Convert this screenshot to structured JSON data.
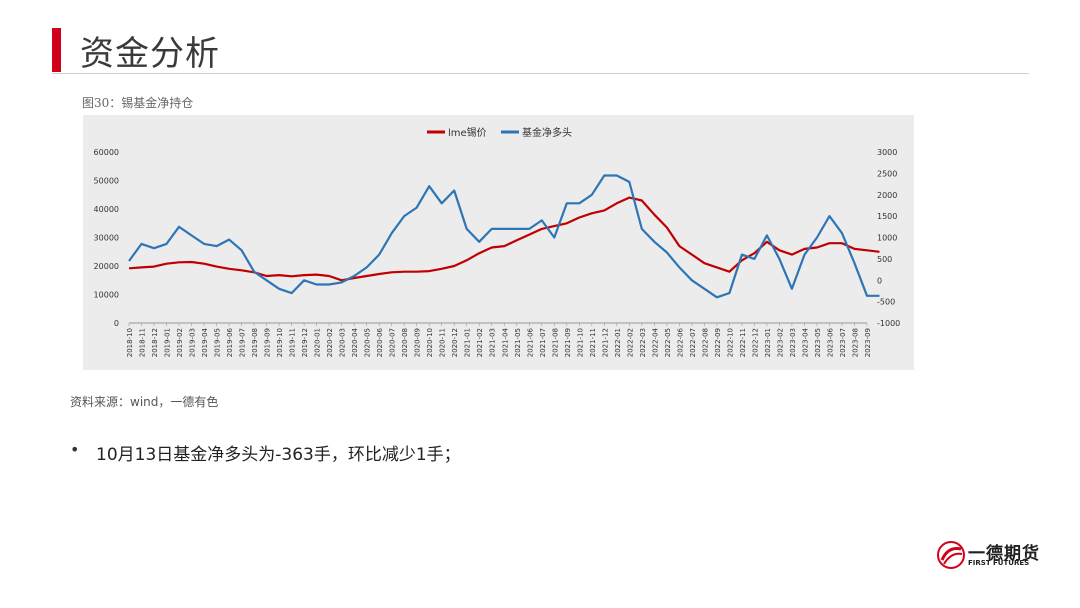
{
  "page": {
    "title": "资金分析",
    "figure_caption": "图30：锡基金净持仓",
    "source": "资料来源：wind，一德有色",
    "bullet": "10月13日基金净多头为-363手，环比减少1手；",
    "bullet_marker": "•"
  },
  "logo": {
    "name_cn": "一德期货",
    "name_en": "FIRST FUTURES"
  },
  "colors": {
    "accent": "#d0021b",
    "series_lme": "#c00000",
    "series_fund": "#2e75b6",
    "chart_bg": "#ececec"
  },
  "chart_data": {
    "type": "line",
    "title": "",
    "legend": {
      "placement": "top",
      "entries": [
        "lme锡价",
        "基金净多头"
      ]
    },
    "x_ticks": [
      "2018-10",
      "2018-11",
      "2018-12",
      "2019-01",
      "2019-02",
      "2019-03",
      "2019-04",
      "2019-05",
      "2019-06",
      "2019-07",
      "2019-08",
      "2019-09",
      "2019-10",
      "2019-11",
      "2019-12",
      "2020-01",
      "2020-02",
      "2020-03",
      "2020-04",
      "2020-05",
      "2020-06",
      "2020-07",
      "2020-08",
      "2020-09",
      "2020-10",
      "2020-11",
      "2020-12",
      "2021-01",
      "2021-02",
      "2021-03",
      "2021-04",
      "2021-05",
      "2021-06",
      "2021-07",
      "2021-08",
      "2021-09",
      "2021-10",
      "2021-11",
      "2021-12",
      "2022-01",
      "2022-02",
      "2022-03",
      "2022-04",
      "2022-05",
      "2022-06",
      "2022-07",
      "2022-08",
      "2022-09",
      "2022-10",
      "2022-11",
      "2022-12",
      "2023-01",
      "2023-02",
      "2023-03",
      "2023-04",
      "2023-05",
      "2023-06",
      "2023-07",
      "2023-08",
      "2023-09"
    ],
    "y_left": {
      "ticks": [
        0,
        10000,
        20000,
        30000,
        40000,
        50000,
        60000
      ],
      "ylim": [
        0,
        60000
      ]
    },
    "y_right": {
      "ticks": [
        -1000,
        -500,
        0,
        500,
        1000,
        1500,
        2000,
        2500,
        3000
      ],
      "ylim": [
        -1000,
        3000
      ]
    },
    "series": [
      {
        "name": "lme锡价",
        "axis": "left",
        "x": [
          "2018-10",
          "2018-11",
          "2018-12",
          "2019-01",
          "2019-02",
          "2019-03",
          "2019-04",
          "2019-05",
          "2019-06",
          "2019-07",
          "2019-08",
          "2019-09",
          "2019-10",
          "2019-11",
          "2019-12",
          "2020-01",
          "2020-02",
          "2020-03",
          "2020-04",
          "2020-05",
          "2020-06",
          "2020-07",
          "2020-08",
          "2020-09",
          "2020-10",
          "2020-11",
          "2020-12",
          "2021-01",
          "2021-02",
          "2021-03",
          "2021-04",
          "2021-05",
          "2021-06",
          "2021-07",
          "2021-08",
          "2021-09",
          "2021-10",
          "2021-11",
          "2021-12",
          "2022-01",
          "2022-02",
          "2022-03",
          "2022-04",
          "2022-05",
          "2022-06",
          "2022-07",
          "2022-08",
          "2022-09",
          "2022-10",
          "2022-11",
          "2022-12",
          "2023-01",
          "2023-02",
          "2023-03",
          "2023-04",
          "2023-05",
          "2023-06",
          "2023-07",
          "2023-08",
          "2023-09",
          "2023-10"
        ],
        "values": [
          19200,
          19500,
          19800,
          20800,
          21300,
          21400,
          20800,
          19800,
          19000,
          18500,
          17800,
          16500,
          16800,
          16400,
          16800,
          17000,
          16500,
          15000,
          15800,
          16500,
          17200,
          17800,
          18000,
          18000,
          18200,
          19000,
          20000,
          22000,
          24500,
          26500,
          27000,
          29000,
          31000,
          33000,
          34000,
          35000,
          37000,
          38500,
          39500,
          42000,
          44000,
          43000,
          38000,
          33500,
          27000,
          24000,
          21000,
          19500,
          18000,
          22000,
          24500,
          28500,
          25500,
          24000,
          26000,
          26500,
          28000,
          28000,
          26000,
          25500,
          25000
        ]
      },
      {
        "name": "基金净多头",
        "axis": "right",
        "x": [
          "2018-10",
          "2018-11",
          "2018-12",
          "2019-01",
          "2019-02",
          "2019-03",
          "2019-04",
          "2019-05",
          "2019-06",
          "2019-07",
          "2019-08",
          "2019-09",
          "2019-10",
          "2019-11",
          "2019-12",
          "2020-01",
          "2020-02",
          "2020-03",
          "2020-04",
          "2020-05",
          "2020-06",
          "2020-07",
          "2020-08",
          "2020-09",
          "2020-10",
          "2020-11",
          "2020-12",
          "2021-01",
          "2021-02",
          "2021-03",
          "2021-04",
          "2021-05",
          "2021-06",
          "2021-07",
          "2021-08",
          "2021-09",
          "2021-10",
          "2021-11",
          "2021-12",
          "2022-01",
          "2022-02",
          "2022-03",
          "2022-04",
          "2022-05",
          "2022-06",
          "2022-07",
          "2022-08",
          "2022-09",
          "2022-10",
          "2022-11",
          "2022-12",
          "2023-01",
          "2023-02",
          "2023-03",
          "2023-04",
          "2023-05",
          "2023-06",
          "2023-07",
          "2023-08",
          "2023-09",
          "2023-10"
        ],
        "values": [
          450,
          850,
          750,
          850,
          1250,
          1050,
          850,
          800,
          950,
          700,
          200,
          0,
          -200,
          -300,
          0,
          -100,
          -100,
          -50,
          100,
          300,
          600,
          1100,
          1500,
          1700,
          2200,
          1800,
          2100,
          1200,
          900,
          1200,
          1200,
          1200,
          1200,
          1400,
          1000,
          1800,
          1800,
          2000,
          2450,
          2450,
          2300,
          1200,
          900,
          650,
          300,
          0,
          -200,
          -400,
          -300,
          600,
          500,
          1050,
          500,
          -200,
          600,
          1000,
          1500,
          1100,
          400,
          -363,
          -363
        ]
      }
    ]
  }
}
